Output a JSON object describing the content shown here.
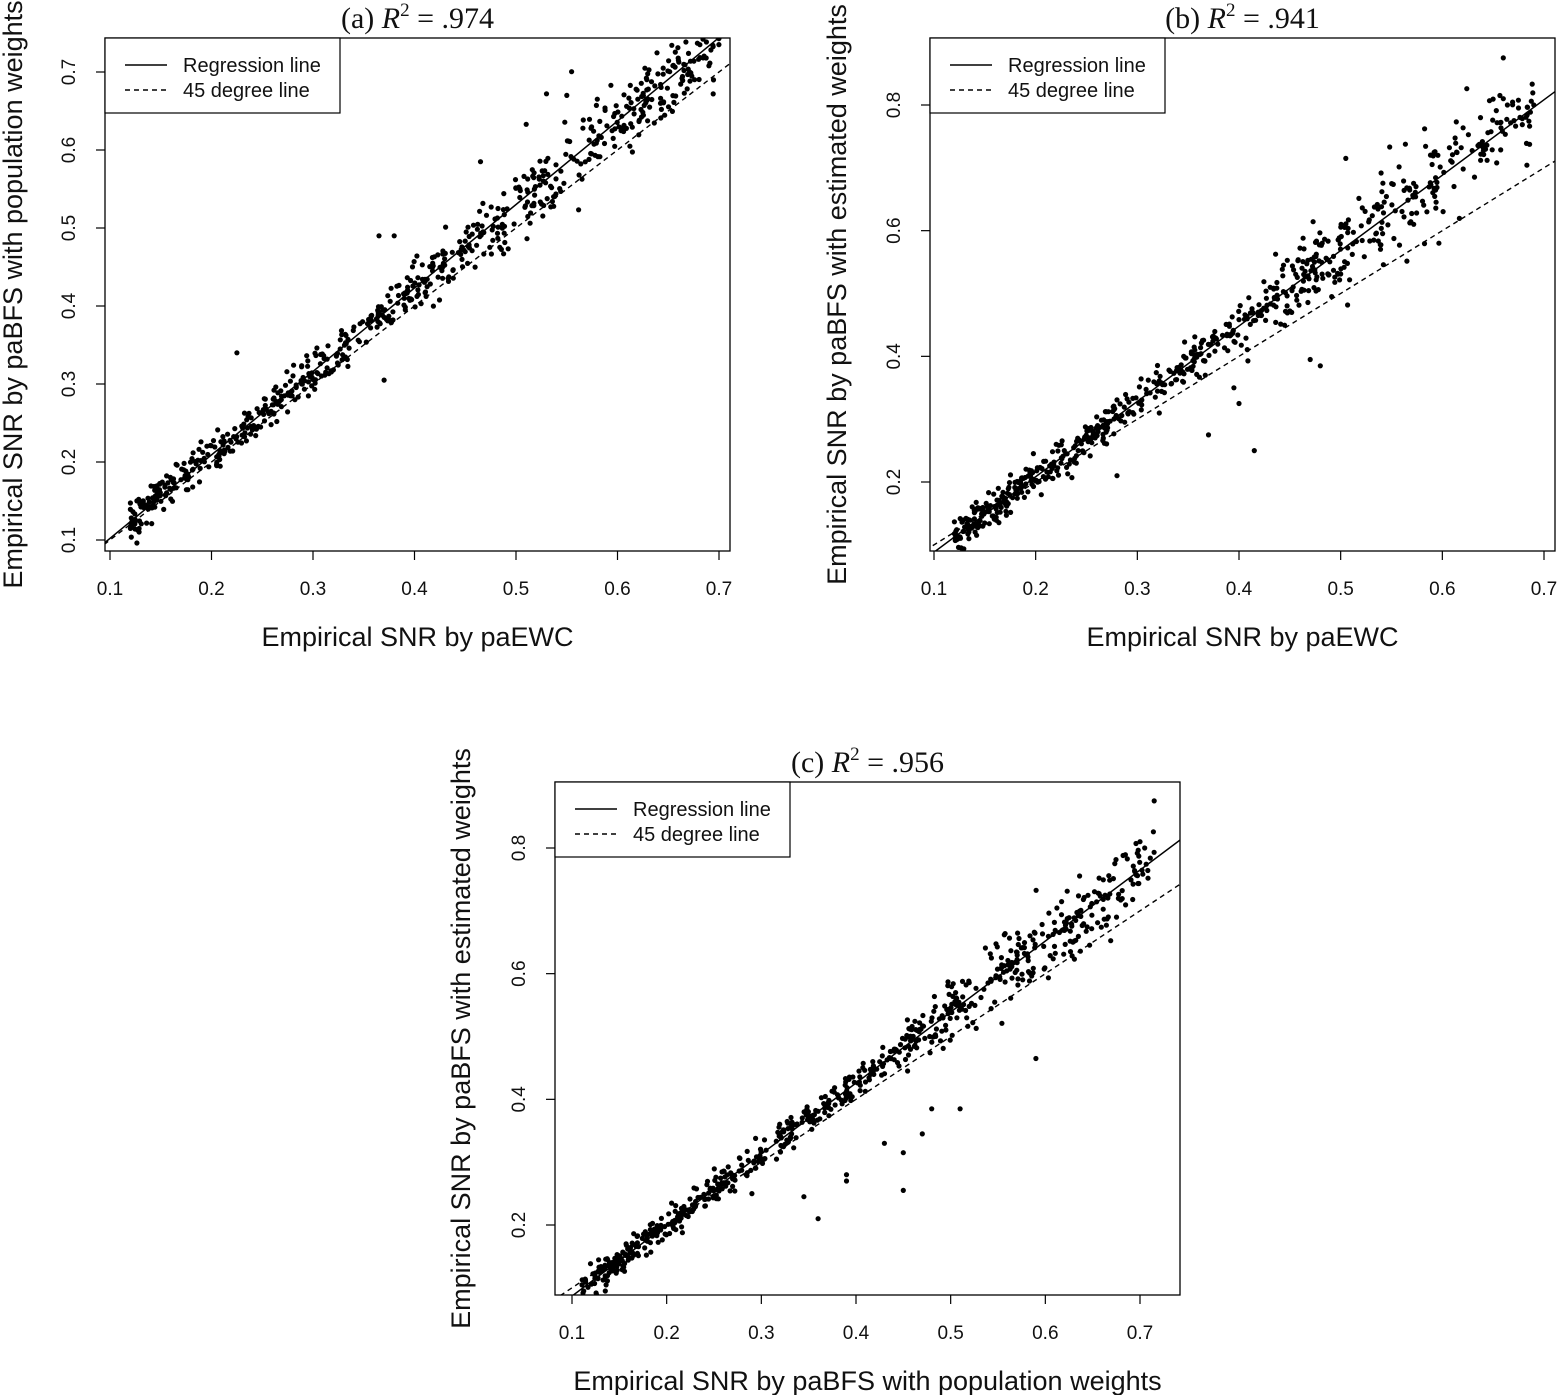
{
  "chart_data": [
    {
      "type": "scatter",
      "title": "(a) R² = .974",
      "title_prefix": "(a) ",
      "title_r2_value": "= .974",
      "xlabel": "Empirical SNR by paEWC",
      "ylabel": "Empirical SNR by paBFS with population weights",
      "xlim": [
        0.1,
        0.7
      ],
      "ylim": [
        0.1,
        0.7
      ],
      "xticks": [
        0.1,
        0.2,
        0.3,
        0.4,
        0.5,
        0.6,
        0.7
      ],
      "yticks": [
        0.1,
        0.2,
        0.3,
        0.4,
        0.5,
        0.6,
        0.7
      ],
      "xtick_labels": [
        "0.1",
        "0.2",
        "0.3",
        "0.4",
        "0.5",
        "0.6",
        "0.7"
      ],
      "ytick_labels": [
        "0.1",
        "0.2",
        "0.3",
        "0.4",
        "0.5",
        "0.6",
        "0.7"
      ],
      "legend": {
        "position": "top-left",
        "entries": [
          "Regression line",
          "45 degree line"
        ]
      },
      "regression": {
        "slope": 1.07,
        "intercept": -0.0049
      },
      "identity_line": true,
      "R2": 0.974,
      "n_points": 700,
      "point_generator": {
        "x_min": 0.12,
        "x_max": 0.7,
        "noise_sd": 0.012,
        "extra_noise_x_over": 0.33,
        "extra_noise_sd": 0.022,
        "seed": 11
      },
      "points_highlight": [
        [
          0.66,
          0.715
        ],
        [
          0.645,
          0.705
        ],
        [
          0.69,
          0.708
        ],
        [
          0.55,
          0.67
        ],
        [
          0.53,
          0.672
        ],
        [
          0.365,
          0.49
        ],
        [
          0.38,
          0.49
        ],
        [
          0.225,
          0.34
        ],
        [
          0.37,
          0.305
        ],
        [
          0.465,
          0.585
        ],
        [
          0.51,
          0.633
        ]
      ]
    },
    {
      "type": "scatter",
      "title": "(b) R² = .941",
      "title_prefix": "(b) ",
      "title_r2_value": "= .941",
      "xlabel": "Empirical SNR by paEWC",
      "ylabel": "Empirical SNR by paBFS with estimated weights",
      "xlim": [
        0.1,
        0.7
      ],
      "ylim": [
        0.1,
        0.9
      ],
      "xticks": [
        0.1,
        0.2,
        0.3,
        0.4,
        0.5,
        0.6,
        0.7
      ],
      "yticks": [
        0.2,
        0.4,
        0.6,
        0.8
      ],
      "xtick_labels": [
        "0.1",
        "0.2",
        "0.3",
        "0.4",
        "0.5",
        "0.6",
        "0.7"
      ],
      "ytick_labels": [
        "0.2",
        "0.4",
        "0.6",
        "0.8"
      ],
      "legend": {
        "position": "top-left",
        "entries": [
          "Regression line",
          "45 degree line"
        ]
      },
      "regression": {
        "slope": 1.2,
        "intercept": -0.0317
      },
      "identity_line": true,
      "R2": 0.941,
      "n_points": 700,
      "point_generator": {
        "x_min": 0.12,
        "x_max": 0.69,
        "noise_sd": 0.015,
        "extra_noise_x_over": 0.33,
        "extra_noise_sd": 0.03,
        "seed": 23
      },
      "points_highlight": [
        [
          0.66,
          0.875
        ],
        [
          0.66,
          0.81
        ],
        [
          0.69,
          0.8
        ],
        [
          0.415,
          0.25
        ],
        [
          0.4,
          0.325
        ],
        [
          0.395,
          0.35
        ],
        [
          0.47,
          0.395
        ],
        [
          0.48,
          0.385
        ],
        [
          0.28,
          0.21
        ],
        [
          0.24,
          0.23
        ],
        [
          0.37,
          0.275
        ],
        [
          0.505,
          0.715
        ]
      ]
    },
    {
      "type": "scatter",
      "title": "(c) R² = .956",
      "title_prefix": "(c) ",
      "title_r2_value": "= .956",
      "xlabel": "Empirical SNR by paBFS with population weights",
      "ylabel": "Empirical SNR by paBFS with estimated weights",
      "xlim": [
        0.1,
        0.72
      ],
      "ylim": [
        0.1,
        0.9
      ],
      "xticks": [
        0.1,
        0.2,
        0.3,
        0.4,
        0.5,
        0.6,
        0.7
      ],
      "yticks": [
        0.2,
        0.4,
        0.6,
        0.8
      ],
      "xtick_labels": [
        "0.1",
        "0.2",
        "0.3",
        "0.4",
        "0.5",
        "0.6",
        "0.7"
      ],
      "ytick_labels": [
        "0.2",
        "0.4",
        "0.6",
        "0.8"
      ],
      "legend": {
        "position": "top-left",
        "entries": [
          "Regression line",
          "45 degree line"
        ]
      },
      "regression": {
        "slope": 1.13,
        "intercept": -0.0261
      },
      "identity_line": true,
      "R2": 0.956,
      "n_points": 700,
      "point_generator": {
        "x_min": 0.11,
        "x_max": 0.715,
        "noise_sd": 0.012,
        "extra_noise_x_over": 0.38,
        "extra_noise_sd": 0.028,
        "seed": 37
      },
      "points_highlight": [
        [
          0.715,
          0.875
        ],
        [
          0.7,
          0.81
        ],
        [
          0.705,
          0.8
        ],
        [
          0.36,
          0.21
        ],
        [
          0.345,
          0.245
        ],
        [
          0.39,
          0.27
        ],
        [
          0.39,
          0.28
        ],
        [
          0.45,
          0.255
        ],
        [
          0.43,
          0.33
        ],
        [
          0.45,
          0.315
        ],
        [
          0.47,
          0.345
        ],
        [
          0.48,
          0.385
        ],
        [
          0.51,
          0.385
        ],
        [
          0.59,
          0.465
        ],
        [
          0.29,
          0.25
        ]
      ]
    }
  ]
}
